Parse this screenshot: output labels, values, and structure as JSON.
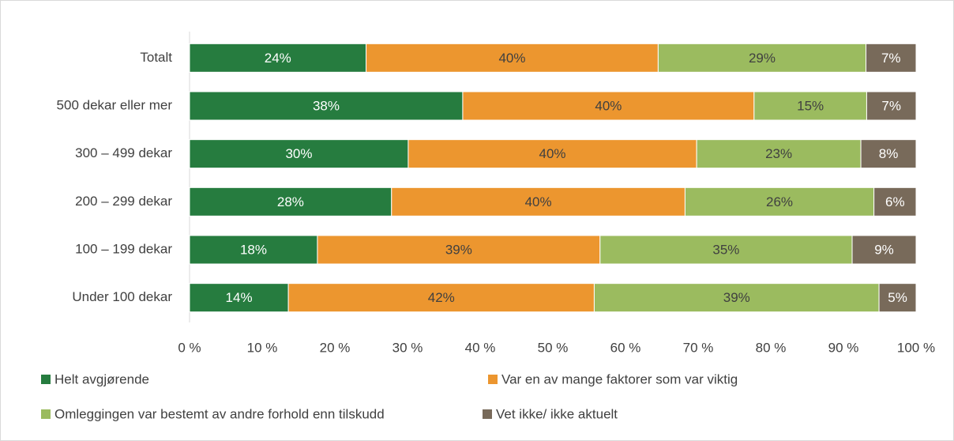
{
  "chart_data": {
    "type": "stacked-barh",
    "categories": [
      "Totalt",
      "500 dekar eller mer",
      "300 – 499 dekar",
      "200 – 299 dekar",
      "100 – 199 dekar",
      "Under 100 dekar"
    ],
    "series": [
      {
        "name": "Helt avgjørende",
        "color": "#267c3f",
        "label_color": "#ffffff",
        "values": [
          24.3,
          37.6,
          30.1,
          27.8,
          17.6,
          13.6
        ],
        "value_labels": [
          "24%",
          "38%",
          "30%",
          "28%",
          "18%",
          "14%"
        ]
      },
      {
        "name": "Var en av mange faktorer som var viktig",
        "color": "#ec962f",
        "label_color": "#404040",
        "values": [
          40.2,
          40.1,
          39.7,
          40.4,
          38.9,
          42.1
        ],
        "value_labels": [
          "40%",
          "40%",
          "40%",
          "40%",
          "39%",
          "42%"
        ]
      },
      {
        "name": "Omleggingen var bestemt av andre forhold enn tilskudd",
        "color": "#9bbb5f",
        "label_color": "#404040",
        "values": [
          28.6,
          15.5,
          22.6,
          26.0,
          34.7,
          39.2
        ],
        "value_labels": [
          "29%",
          "15%",
          "23%",
          "26%",
          "35%",
          "39%"
        ]
      },
      {
        "name": "Vet ikke/ ikke aktuelt",
        "color": "#786a5a",
        "label_color": "#ffffff",
        "values": [
          6.9,
          6.8,
          7.6,
          5.8,
          8.8,
          5.1
        ],
        "value_labels": [
          "7%",
          "7%",
          "8%",
          "6%",
          "9%",
          "5%"
        ]
      }
    ],
    "xlim": [
      0,
      100
    ],
    "xticks": [
      {
        "value": 0,
        "label": "0 %"
      },
      {
        "value": 10,
        "label": "10 %"
      },
      {
        "value": 20,
        "label": "20 %"
      },
      {
        "value": 30,
        "label": "30 %"
      },
      {
        "value": 40,
        "label": "40 %"
      },
      {
        "value": 50,
        "label": "50 %"
      },
      {
        "value": 60,
        "label": "60 %"
      },
      {
        "value": 70,
        "label": "70 %"
      },
      {
        "value": 80,
        "label": "80 %"
      },
      {
        "value": 90,
        "label": "90 %"
      },
      {
        "value": 100,
        "label": "100 %"
      }
    ]
  }
}
